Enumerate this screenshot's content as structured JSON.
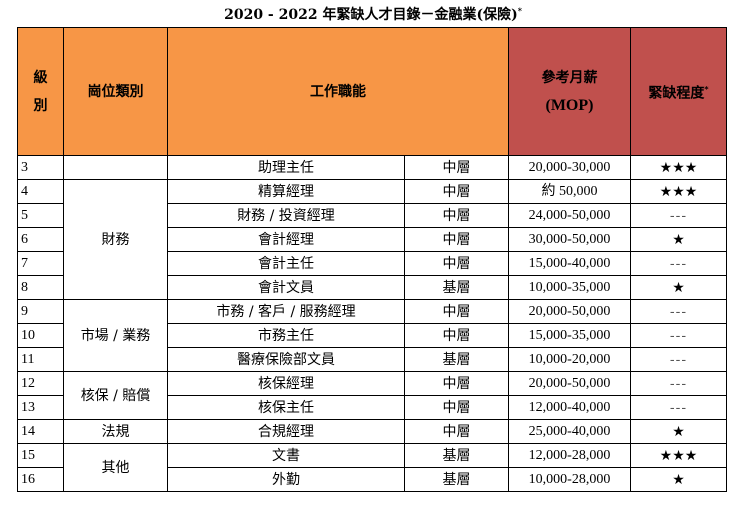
{
  "title": "2020 - 2022 年緊缺人才目錄－金融業(保險)",
  "title_mark": "*",
  "header": {
    "level": "級別",
    "category": "崗位類別",
    "function": "工作職能",
    "salary": "參考月薪",
    "salary_unit": "(MOP)",
    "shortage": "緊缺程度",
    "shortage_mark": "*"
  },
  "rows": [
    {
      "no": "3",
      "function": "助理主任",
      "tier": "中層",
      "salary": "20,000-30,000",
      "shortage": "★★★"
    },
    {
      "no": "4",
      "function": "精算經理",
      "tier": "中層",
      "salary": "約 50,000",
      "shortage": "★★★"
    },
    {
      "no": "5",
      "function": "財務 / 投資經理",
      "tier": "中層",
      "salary": "24,000-50,000",
      "shortage": "---"
    },
    {
      "no": "6",
      "function": "會計經理",
      "tier": "中層",
      "salary": "30,000-50,000",
      "shortage": "★"
    },
    {
      "no": "7",
      "function": "會計主任",
      "tier": "中層",
      "salary": "15,000-40,000",
      "shortage": "---"
    },
    {
      "no": "8",
      "function": "會計文員",
      "tier": "基層",
      "salary": "10,000-35,000",
      "shortage": "★"
    },
    {
      "no": "9",
      "function": "市務 / 客戶 / 服務經理",
      "tier": "中層",
      "salary": "20,000-50,000",
      "shortage": "---"
    },
    {
      "no": "10",
      "function": "市務主任",
      "tier": "中層",
      "salary": "15,000-35,000",
      "shortage": "---"
    },
    {
      "no": "11",
      "function": "醫療保險部文員",
      "tier": "基層",
      "salary": "10,000-20,000",
      "shortage": "---"
    },
    {
      "no": "12",
      "function": "核保經理",
      "tier": "中層",
      "salary": "20,000-50,000",
      "shortage": "---"
    },
    {
      "no": "13",
      "function": "核保主任",
      "tier": "中層",
      "salary": "12,000-40,000",
      "shortage": "---"
    },
    {
      "no": "14",
      "function": "合規經理",
      "tier": "中層",
      "salary": "25,000-40,000",
      "shortage": "★"
    },
    {
      "no": "15",
      "function": "文書",
      "tier": "基層",
      "salary": "12,000-28,000",
      "shortage": "★★★"
    },
    {
      "no": "16",
      "function": "外勤",
      "tier": "基層",
      "salary": "10,000-28,000",
      "shortage": "★"
    }
  ],
  "categories": {
    "finance": "財務",
    "marketing": "市場 / 業務",
    "underwriting": "核保 / 賠償",
    "compliance": "法規",
    "other": "其他"
  },
  "colors": {
    "header_orange": "#f79646",
    "header_red": "#c0504d"
  }
}
